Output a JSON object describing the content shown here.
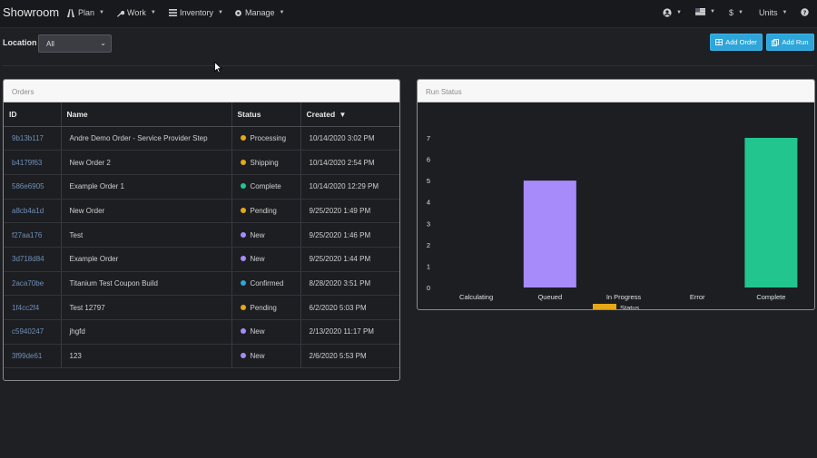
{
  "app": {
    "brand": "Showroom"
  },
  "nav": {
    "left": [
      {
        "label": "Plan",
        "icon": "road-icon"
      },
      {
        "label": "Work",
        "icon": "wrench-icon"
      },
      {
        "label": "Inventory",
        "icon": "list-icon"
      },
      {
        "label": "Manage",
        "icon": "gear-icon"
      }
    ],
    "right": {
      "user_icon": "user-icon",
      "flag_icon": "us-flag-icon",
      "currency": "$",
      "units": "Units",
      "help_icon": "help-icon"
    }
  },
  "toolbar": {
    "location_label": "Location",
    "location_value": "All",
    "add_order": "Add Order",
    "add_run": "Add Run",
    "accent": "#2ea6d9"
  },
  "orders": {
    "title": "Orders",
    "columns": [
      "ID",
      "Name",
      "Status",
      "Created"
    ],
    "sort_indicator": "▼",
    "rows": [
      {
        "id": "9b13b117",
        "name": "Andre Demo Order - Service Provider Step",
        "status": "Processing",
        "status_color": "#e6a817",
        "created": "10/14/2020 3:02 PM"
      },
      {
        "id": "b4179f63",
        "name": "New Order 2",
        "status": "Shipping",
        "status_color": "#e6a817",
        "created": "10/14/2020 2:54 PM"
      },
      {
        "id": "586e6905",
        "name": "Example Order 1",
        "status": "Complete",
        "status_color": "#23c58f",
        "created": "10/14/2020 12:29 PM"
      },
      {
        "id": "a8cb4a1d",
        "name": "New Order",
        "status": "Pending",
        "status_color": "#e6a817",
        "created": "9/25/2020 1:49 PM"
      },
      {
        "id": "f27aa176",
        "name": "Test",
        "status": "New",
        "status_color": "#a78bfa",
        "created": "9/25/2020 1:46 PM"
      },
      {
        "id": "3d718d84",
        "name": "Example Order",
        "status": "New",
        "status_color": "#a78bfa",
        "created": "9/25/2020 1:44 PM"
      },
      {
        "id": "2aca70be",
        "name": "Titanium Test Coupon Build",
        "status": "Confirmed",
        "status_color": "#2ea6d9",
        "created": "8/28/2020 3:51 PM"
      },
      {
        "id": "1f4cc2f4",
        "name": "Test 12797",
        "status": "Pending",
        "status_color": "#e6a817",
        "created": "6/2/2020 5:03 PM"
      },
      {
        "id": "c5940247",
        "name": "jhgfd",
        "status": "New",
        "status_color": "#a78bfa",
        "created": "2/13/2020 11:17 PM"
      },
      {
        "id": "3f99de61",
        "name": "123",
        "status": "New",
        "status_color": "#a78bfa",
        "created": "2/6/2020 5:53 PM"
      }
    ]
  },
  "run_status": {
    "title": "Run Status"
  },
  "chart_data": {
    "type": "bar",
    "categories": [
      "Calculating",
      "Queued",
      "In Progress",
      "Error",
      "Complete"
    ],
    "series": [
      {
        "name": "Status",
        "values": [
          0,
          5,
          0,
          0,
          7
        ],
        "colors": [
          "#e6a817",
          "#a78bfa",
          "#2ea6d9",
          "#e05555",
          "#23c58f"
        ]
      }
    ],
    "legend_color": "#e6a817",
    "ylim": [
      0,
      7
    ],
    "yticks": [
      0,
      1,
      2,
      3,
      4,
      5,
      6,
      7
    ],
    "legend": "bottom",
    "grid": false
  }
}
